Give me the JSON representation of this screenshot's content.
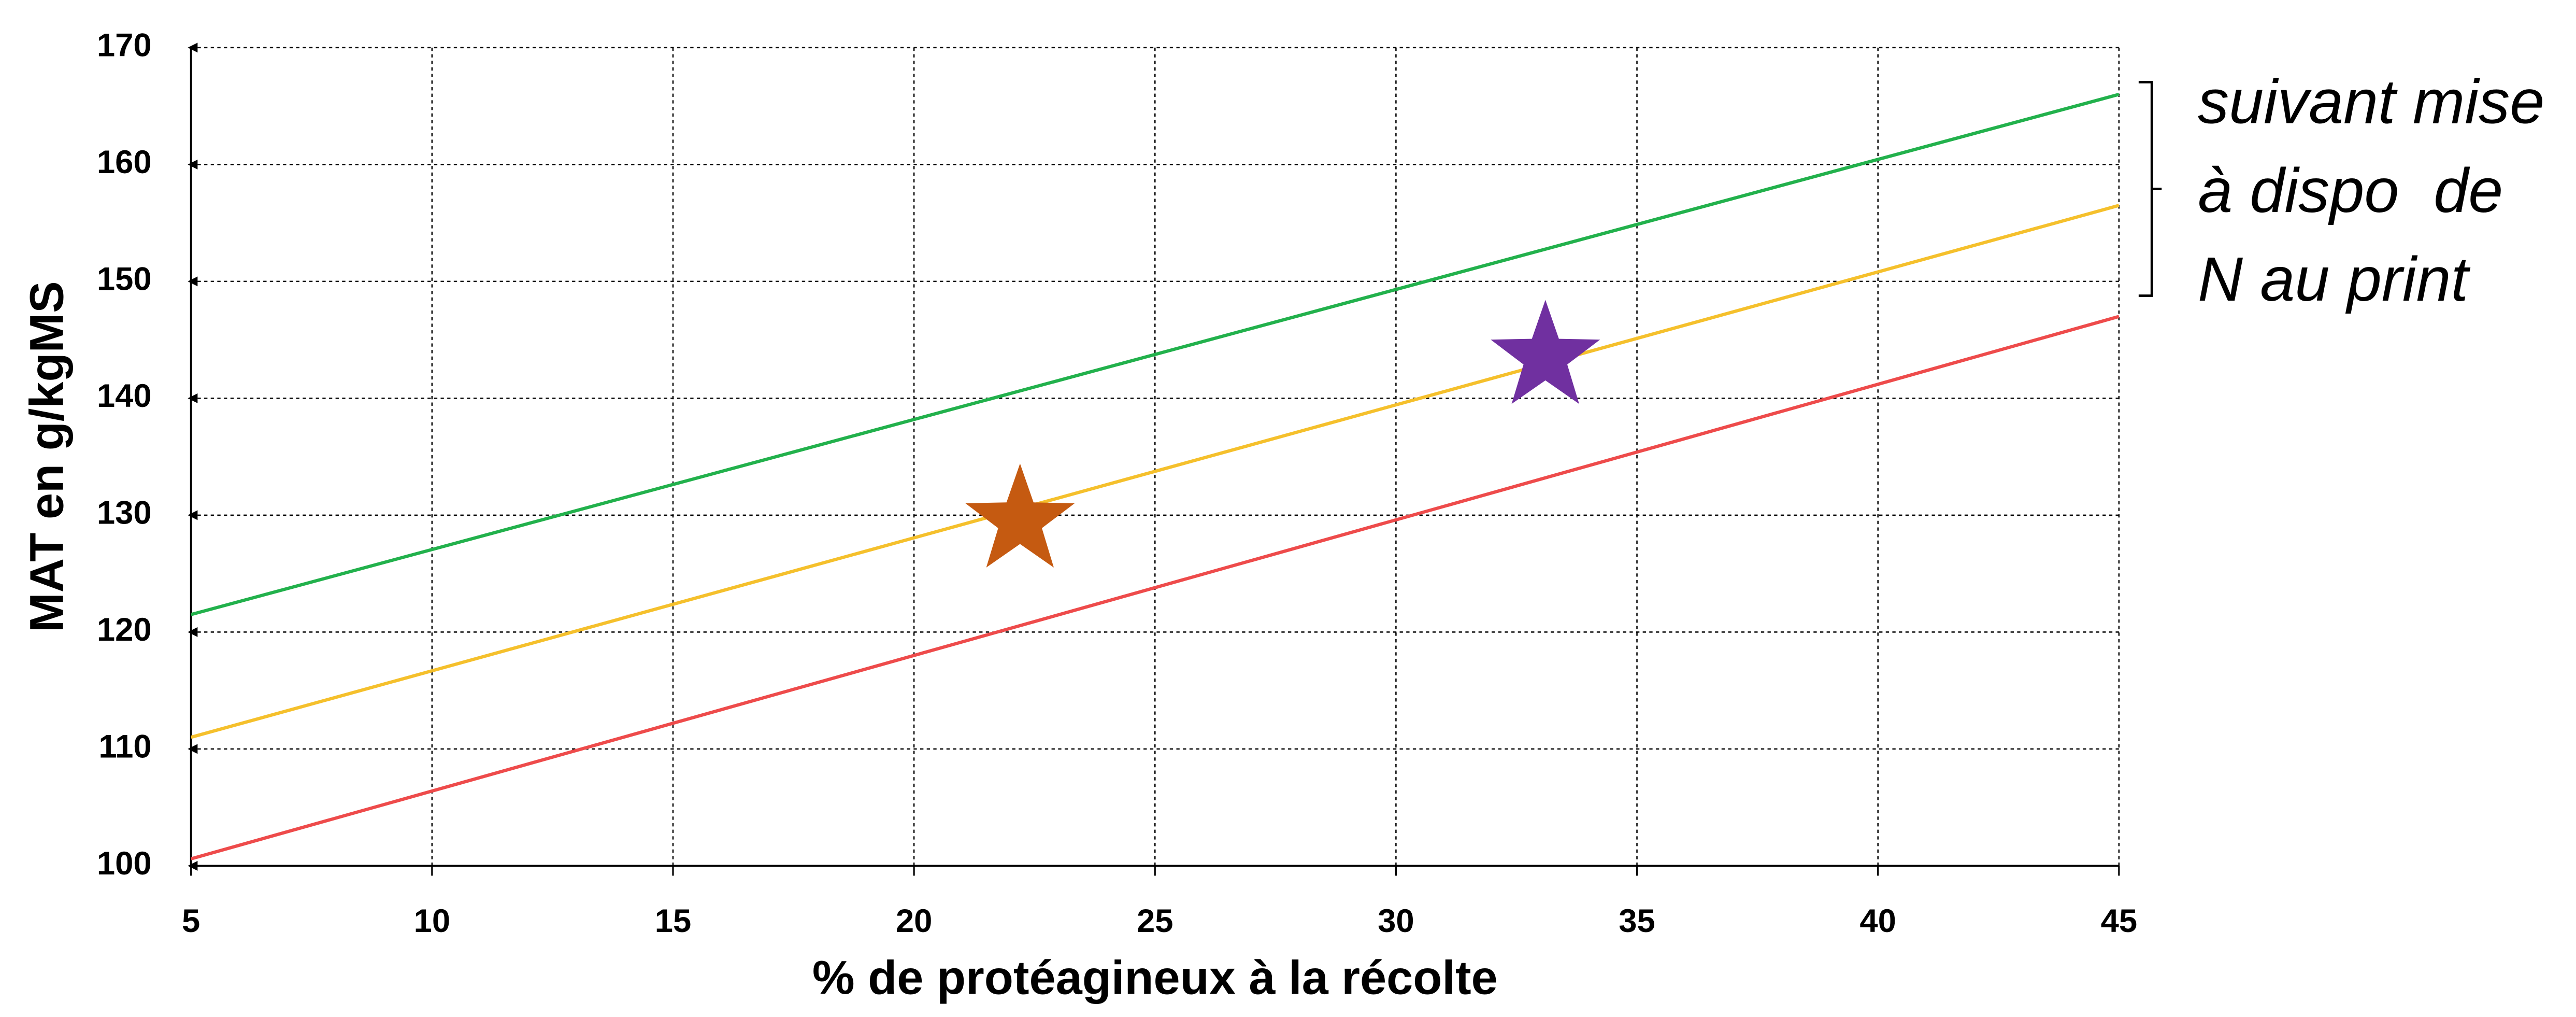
{
  "chart_data": {
    "type": "line",
    "xlabel": "% de protéagineux à la récolte",
    "ylabel": "MAT en g/kgMS",
    "xlim": [
      5,
      45
    ],
    "ylim": [
      100,
      170
    ],
    "xticks": [
      5,
      10,
      15,
      20,
      25,
      30,
      35,
      40,
      45
    ],
    "yticks": [
      100,
      110,
      120,
      130,
      140,
      150,
      160,
      170
    ],
    "grid": true,
    "series": [
      {
        "color": "#22b14c",
        "x": [
          5,
          45
        ],
        "values": [
          121.5,
          166
        ]
      },
      {
        "color": "#f5c02c",
        "x": [
          5,
          45
        ],
        "values": [
          111,
          156.5
        ]
      },
      {
        "color": "#ee4b4b",
        "x": [
          5,
          45
        ],
        "values": [
          100.6,
          147
        ]
      }
    ],
    "markers": [
      {
        "shape": "star",
        "color": "#c55a11",
        "x": 22.2,
        "y": 129.5
      },
      {
        "shape": "star",
        "color": "#7030a0",
        "x": 33.1,
        "y": 143.5
      }
    ],
    "annotation": [
      "suivant mise",
      "à dispo  de",
      "N au print"
    ]
  }
}
